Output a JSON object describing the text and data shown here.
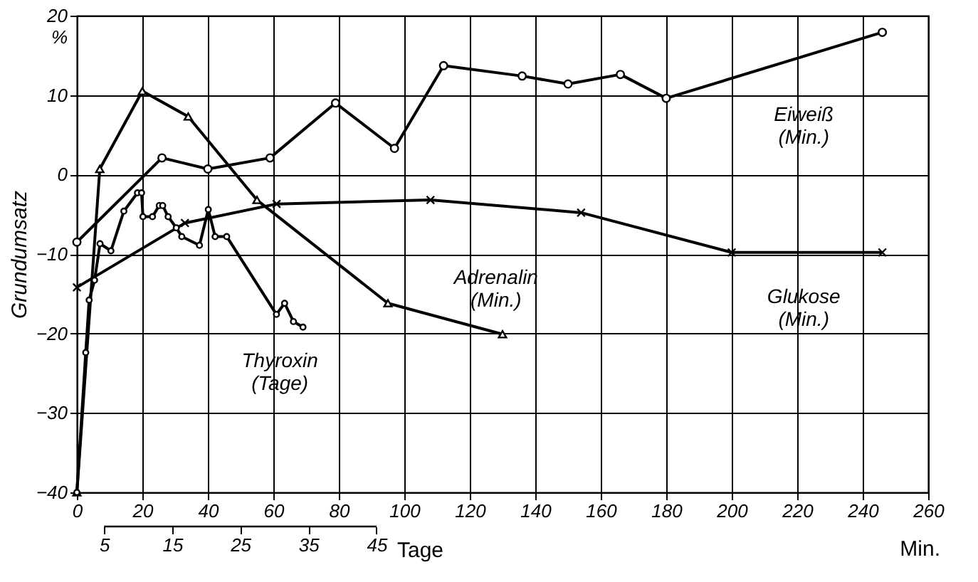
{
  "chart_data": {
    "type": "line",
    "ylabel": "Grundumsatz",
    "xlabel": "Min.",
    "x2label": "Tage",
    "xlim": [
      0,
      260
    ],
    "xticks": [
      0,
      20,
      40,
      60,
      80,
      100,
      120,
      140,
      160,
      180,
      200,
      220,
      240,
      260
    ],
    "x2lim": [
      1,
      126
    ],
    "x2ticks": [
      5,
      15,
      25,
      35,
      45
    ],
    "ylim": [
      -40,
      20
    ],
    "yticks": [
      -40,
      -30,
      -20,
      -10,
      0,
      10,
      {
        "value": 20,
        "label": "20\n%"
      }
    ],
    "grid": true,
    "line_style": "solid",
    "legend": false,
    "series": [
      {
        "name": "Eiweiß\n(Min.)",
        "color": "#000000",
        "marker": "circle",
        "x": [
          0,
          26,
          40,
          59,
          79,
          97,
          112,
          136,
          150,
          166,
          180,
          246
        ],
        "values": [
          -8.5,
          2.1,
          0.7,
          2.1,
          9,
          3.3,
          13.7,
          12.4,
          11.4,
          12.6,
          9.6,
          17.9
        ]
      },
      {
        "name": "Adrenalin\n(Min.)",
        "color": "#000000",
        "marker": "triangle",
        "x": [
          0,
          7,
          20,
          34,
          55,
          95,
          130
        ],
        "values": [
          -40,
          0.7,
          10.5,
          7.3,
          -3.2,
          -16.2,
          -20.1
        ]
      },
      {
        "name": "Glukose\n(Min.)",
        "color": "#000000",
        "marker": "cross",
        "x": [
          0,
          33,
          61,
          108,
          154,
          200,
          246
        ],
        "values": [
          -14.2,
          -6.1,
          -3.7,
          -3.2,
          -4.8,
          -9.8,
          -9.8
        ]
      },
      {
        "name": "Thyroxin\n(Tage)",
        "color": "#000000",
        "marker": "circle",
        "axis": "x2",
        "x": [
          1,
          2.3,
          2.8,
          3.6,
          4.4,
          6,
          7.9,
          9.9,
          10.5,
          10.7,
          12.1,
          13.1,
          13.6,
          14.4,
          15.6,
          16.4,
          19,
          20.3,
          21.3,
          23,
          30.3,
          31.5,
          32.8,
          34.2
        ],
        "values": [
          -40,
          -22.4,
          -15.8,
          -13.3,
          -8.7,
          -9.6,
          -4.6,
          -2.3,
          -2.3,
          -5.3,
          -5.3,
          -3.9,
          -3.9,
          -5.3,
          -6.7,
          -7.8,
          -8.9,
          -4.4,
          -7.8,
          -7.8,
          -17.6,
          -16.2,
          -18.5,
          -19.2
        ]
      }
    ]
  }
}
